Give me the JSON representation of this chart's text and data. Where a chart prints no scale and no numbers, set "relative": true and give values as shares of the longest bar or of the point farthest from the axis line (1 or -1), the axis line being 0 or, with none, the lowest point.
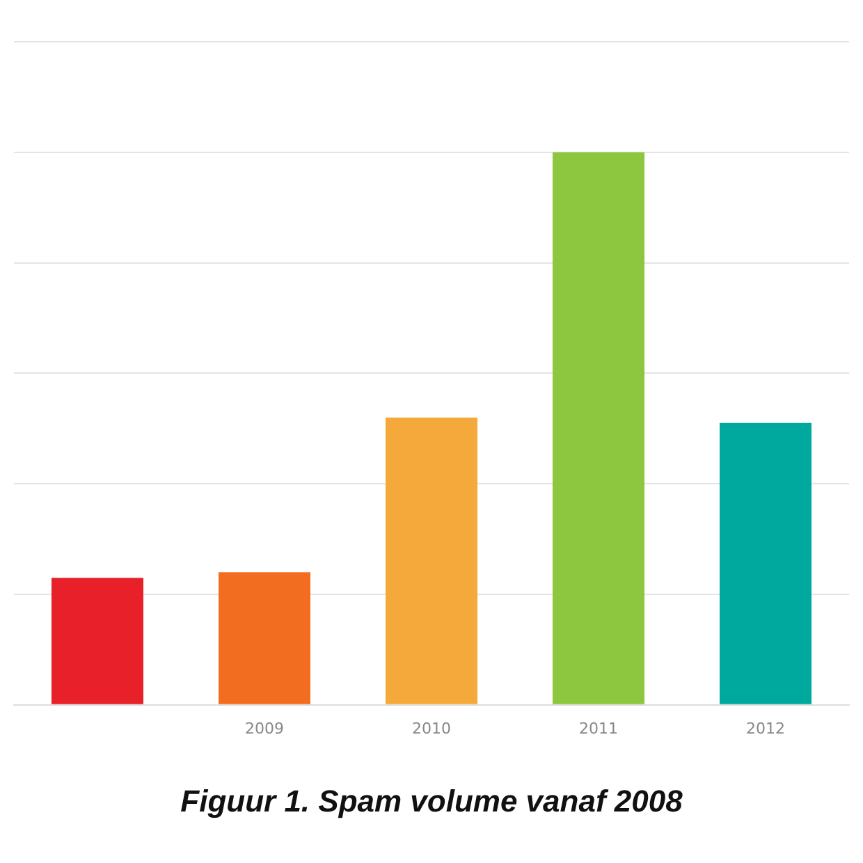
{
  "chart_data": {
    "type": "bar",
    "title": "Figuur 1. Spam volume vanaf 2008",
    "categories": [
      null,
      "2009",
      "2010",
      "2011",
      "2012"
    ],
    "values": [
      0.23,
      0.24,
      0.52,
      1,
      0.51
    ],
    "colors": [
      "#e8202a",
      "#f36d21",
      "#f6a93b",
      "#8dc63f",
      "#00a99d"
    ],
    "relative": true,
    "grid": "y"
  }
}
